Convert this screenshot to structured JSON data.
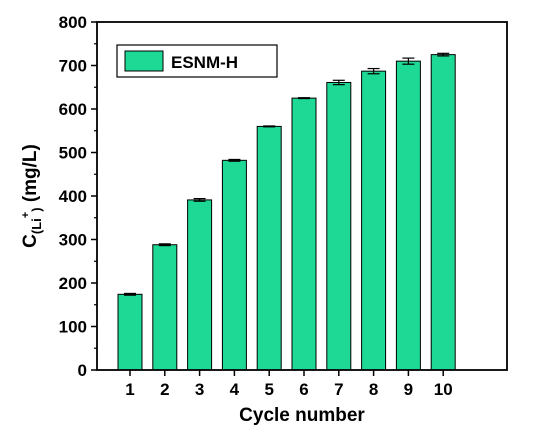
{
  "chart_data": {
    "type": "bar",
    "categories": [
      "1",
      "2",
      "3",
      "4",
      "5",
      "6",
      "7",
      "8",
      "9",
      "10"
    ],
    "series": [
      {
        "name": "ESNM-H",
        "values": [
          174,
          288,
          391,
          482,
          560,
          625,
          661,
          687,
          710,
          725
        ],
        "errors": [
          2,
          2,
          3,
          2,
          1,
          1,
          5,
          6,
          7,
          3
        ],
        "color": "#1ED895"
      }
    ],
    "xlabel": "Cycle number",
    "ylabel_main": "C",
    "ylabel_sub": "(Li",
    "ylabel_sup": "+",
    "ylabel_sub_close": ")",
    "ylabel_unit": " (mg/L)",
    "ylim": [
      0,
      800
    ],
    "yticks": [
      "0",
      "100",
      "200",
      "300",
      "400",
      "500",
      "600",
      "700",
      "800"
    ],
    "legend_position": "top-left",
    "grid": false
  }
}
